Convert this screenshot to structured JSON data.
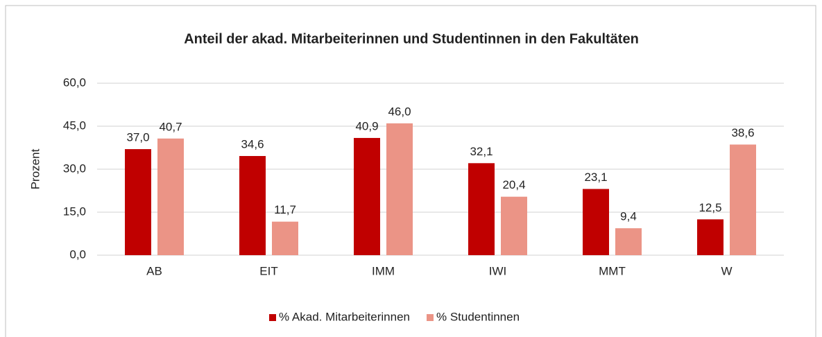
{
  "chart_data": {
    "type": "bar",
    "title": "Anteil der akad. Mitarbeiterinnen und Studentinnen in den Fakultäten",
    "y_label": "Prozent",
    "categories": [
      "AB",
      "EIT",
      "IMM",
      "IWI",
      "MMT",
      "W"
    ],
    "series": [
      {
        "name": "% Akad. Mitarbeiterinnen",
        "color": "#c00000",
        "values": [
          37.0,
          34.6,
          40.9,
          32.1,
          23.1,
          12.5
        ],
        "value_labels": [
          "37,0",
          "34,6",
          "40,9",
          "32,1",
          "23,1",
          "12,5"
        ]
      },
      {
        "name": "% Studentinnen",
        "color": "#eb9486",
        "values": [
          40.7,
          11.7,
          46.0,
          20.4,
          9.4,
          38.6
        ],
        "value_labels": [
          "40,7",
          "11,7",
          "46,0",
          "20,4",
          "9,4",
          "38,6"
        ]
      }
    ],
    "ylim": [
      0,
      60
    ],
    "yticks": [
      {
        "value": 0,
        "label": "0,0"
      },
      {
        "value": 15,
        "label": "15,0"
      },
      {
        "value": 30,
        "label": "30,0"
      },
      {
        "value": 45,
        "label": "45,0"
      },
      {
        "value": 60,
        "label": "60,0"
      }
    ],
    "grid": true,
    "legend": "bottom"
  }
}
